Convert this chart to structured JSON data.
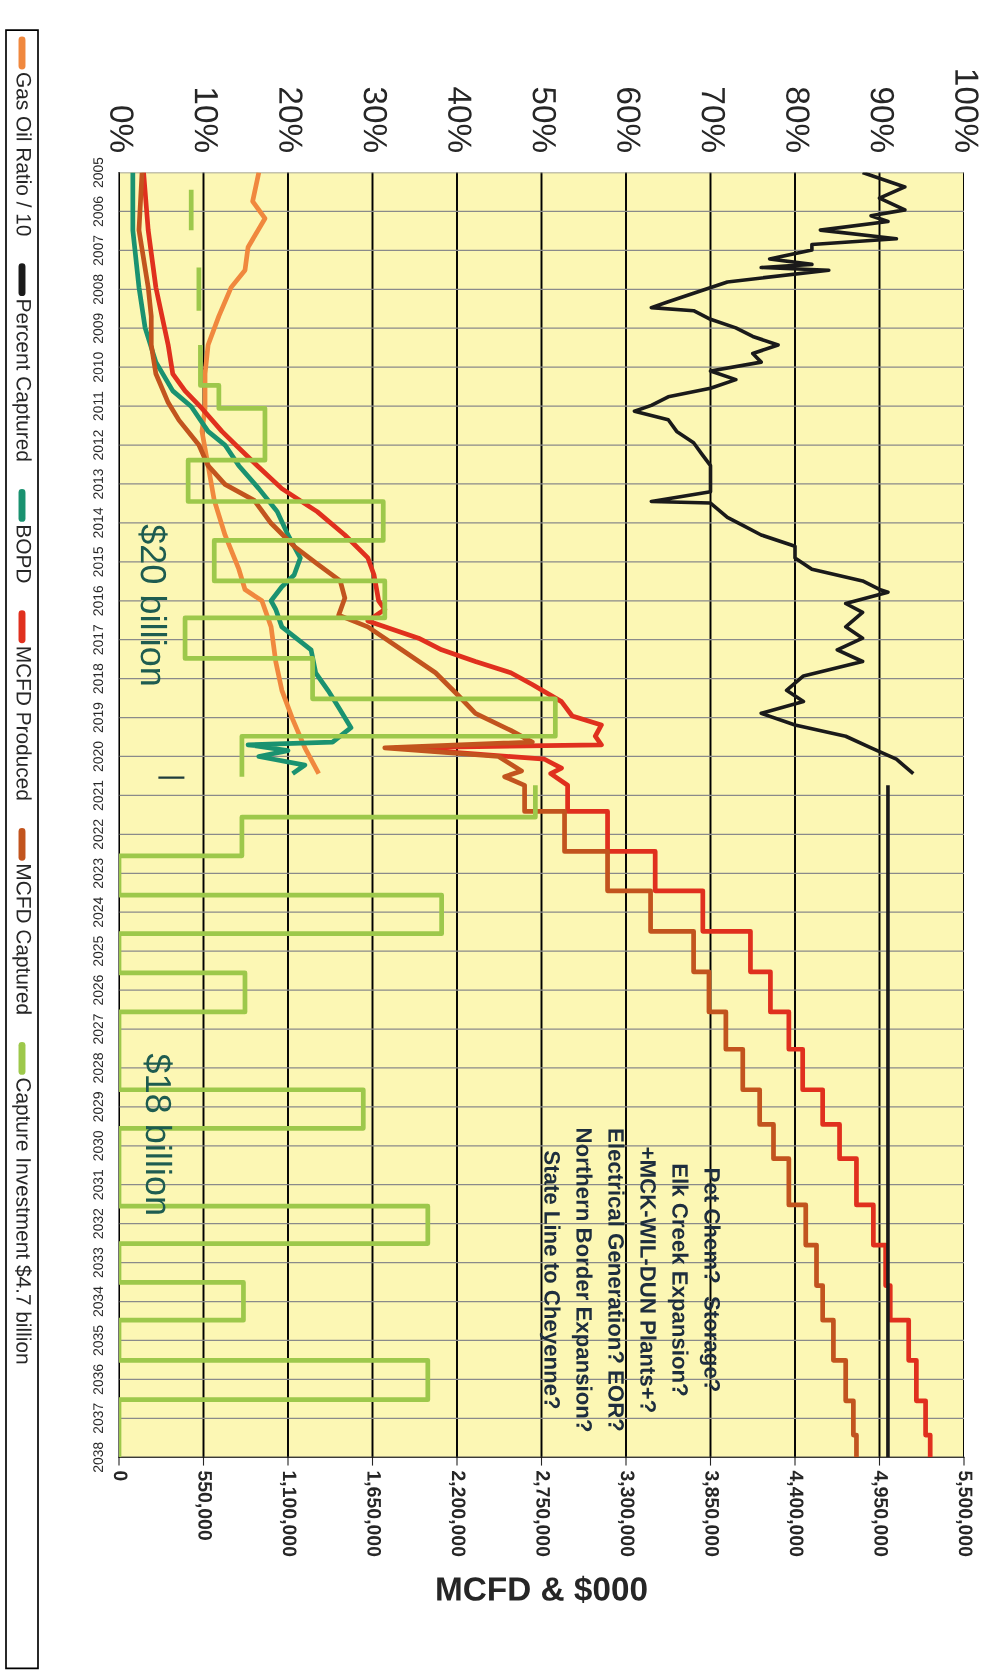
{
  "chart_data": {
    "type": "line",
    "orientation": "horizontal",
    "xlabel": "MCFD & $000",
    "xlim": [
      0,
      5500000
    ],
    "xticks": [
      0,
      {
        "value": 550000,
        "label": "550,000"
      },
      {
        "value": 1100000,
        "label": "1,100,000"
      },
      {
        "value": 1650000,
        "label": "1,650,000"
      },
      {
        "value": 2200000,
        "label": "2,200,000"
      },
      {
        "value": 2750000,
        "label": "2,750,000"
      },
      {
        "value": 3300000,
        "label": "3,300,000"
      },
      {
        "value": 3850000,
        "label": "3,850,000"
      },
      {
        "value": 4400000,
        "label": "4,400,000"
      },
      {
        "value": 4950000,
        "label": "4,950,000"
      },
      {
        "value": 5500000,
        "label": "5,500,000"
      }
    ],
    "x2lim": [
      0,
      100
    ],
    "x2ticks": [
      {
        "value": 0,
        "label": "0%"
      },
      {
        "value": 10,
        "label": "10%"
      },
      {
        "value": 20,
        "label": "20%"
      },
      {
        "value": 30,
        "label": "30%"
      },
      {
        "value": 40,
        "label": "40%"
      },
      {
        "value": 50,
        "label": "50%"
      },
      {
        "value": 60,
        "label": "60%"
      },
      {
        "value": 70,
        "label": "70%"
      },
      {
        "value": 80,
        "label": "80%"
      },
      {
        "value": 90,
        "label": "90%"
      },
      {
        "value": 100,
        "label": "100%"
      }
    ],
    "ylim": [
      2038,
      2005
    ],
    "yticks": [
      2005,
      2006,
      2007,
      2008,
      2009,
      2010,
      2011,
      2012,
      2013,
      2014,
      2015,
      2016,
      2017,
      2018,
      2019,
      2020,
      2021,
      2022,
      2023,
      2024,
      2025,
      2026,
      2027,
      2028,
      2029,
      2030,
      2031,
      2032,
      2033,
      2034,
      2035,
      2036,
      2037,
      2038
    ],
    "grid": true,
    "legend": "left",
    "line_style": "solid",
    "marker": "none",
    "annotations": [
      "$20 billion",
      "|",
      "$18 billion",
      "Pet Chem?  Storage?\nElk Creek Expansion?\n+MCK-WIL-DUN Plants+?\nElectrical Generation? EOR?\nNorthern Border Expansion?\nState Line to Cheyenne?"
    ],
    "series": [
      {
        "name": "Gas Oil Ratio / 10",
        "color": "#f0883e",
        "x": [
          2005.0,
          2005.74,
          2006.18,
          2006.92,
          2007.51,
          2007.95,
          2008.69,
          2009.43,
          2010.17,
          2011.06,
          2011.65,
          2012.53,
          2013.42,
          2014.31,
          2015.19,
          2015.71,
          2016.0,
          2016.67,
          2017.56,
          2018.3,
          2019.04,
          2019.78,
          2020.44
        ],
        "values": [
          910000,
          870000,
          950000,
          840000,
          820000,
          730000,
          650000,
          580000,
          560000,
          560000,
          540000,
          580000,
          620000,
          690000,
          780000,
          820000,
          930000,
          990000,
          1020000,
          1060000,
          1130000,
          1210000,
          1300000
        ]
      },
      {
        "name": "Percent Captured",
        "color": "#1a1a1a",
        "axis": "x2",
        "x": [
          2005.0,
          2005.37,
          2005.66,
          2005.96,
          2006.11,
          2006.26,
          2006.48,
          2006.7,
          2006.85,
          2006.99,
          2007.22,
          2007.36,
          2007.44,
          2007.51,
          2007.81,
          2008.1,
          2008.32,
          2008.47,
          2008.55,
          2008.77,
          2008.99,
          2009.21,
          2009.43,
          2009.65,
          2009.87,
          2010.1,
          2010.32,
          2010.54,
          2010.76,
          2010.98,
          2011.13,
          2011.35,
          2011.65,
          2011.94,
          2012.24,
          2012.53,
          2012.83,
          2013.2,
          2013.45,
          2013.49,
          2013.86,
          2014.08,
          2014.31,
          2014.6,
          2014.9,
          2015.19,
          2015.49,
          2015.71,
          2015.78,
          2016.07,
          2016.3,
          2016.67,
          2016.96,
          2017.26,
          2017.56,
          2017.93,
          2018.3,
          2018.59,
          2018.89,
          2019.19,
          2019.48,
          2019.78,
          2020.07,
          2020.44,
          2020.6,
          2020.74,
          2038
        ],
        "values": [
          88,
          93,
          90,
          93,
          89,
          91,
          83,
          92,
          82,
          82,
          77,
          82,
          76,
          84,
          72,
          68,
          65,
          63,
          68,
          70,
          73,
          75,
          78,
          75,
          76,
          70,
          73,
          70,
          65,
          63,
          61,
          65,
          66,
          68,
          69,
          70,
          70,
          70,
          63,
          70,
          72,
          74,
          76,
          80,
          80,
          82,
          88,
          90,
          91,
          86,
          88,
          86,
          88,
          85,
          88,
          81,
          79,
          81,
          76,
          80,
          86,
          89,
          92,
          94,
          null,
          91,
          91
        ]
      },
      {
        "name": "BOPD",
        "color": "#1a9270",
        "x": [
          2005.0,
          2006.48,
          2007.95,
          2008.99,
          2009.87,
          2010.61,
          2011.01,
          2011.65,
          2012.0,
          2012.53,
          2013.12,
          2013.71,
          2014.31,
          2014.9,
          2015.34,
          2015.64,
          2016.0,
          2016.22,
          2016.67,
          2017.26,
          2017.85,
          2018.3,
          2018.74,
          2019.26,
          2019.63,
          2019.7,
          2019.85,
          2020.0,
          2020.22,
          2020.44
        ],
        "values": [
          90000,
          90000,
          130000,
          170000,
          240000,
          350000,
          470000,
          580000,
          690000,
          780000,
          910000,
          1030000,
          1100000,
          1180000,
          1140000,
          1060000,
          990000,
          1020000,
          1060000,
          1250000,
          1280000,
          1360000,
          1430000,
          1510000,
          1390000,
          840000,
          1100000,
          910000,
          1210000,
          1130000
        ]
      },
      {
        "name": "MCFD Produced",
        "color": "#e0301e",
        "x": [
          2005.0,
          2006.48,
          2007.95,
          2008.69,
          2009.43,
          2010.17,
          2010.61,
          2011.06,
          2011.65,
          2012.0,
          2012.53,
          2013.12,
          2013.71,
          2014.31,
          2014.9,
          2015.34,
          2016.0,
          2016.22,
          2016.52,
          2016.67,
          2016.96,
          2017.26,
          2017.56,
          2017.85,
          2018.15,
          2018.59,
          2018.96,
          2019.19,
          2019.48,
          2019.7,
          2019.78,
          2020.07,
          2020.3,
          2020.44,
          2020.74,
          2021.41,
          2021.41,
          2022.44,
          2022.44,
          2023.45,
          2023.45,
          2024.49,
          2024.49,
          2025.53,
          2025.53,
          2026.56,
          2026.56,
          2027.52,
          2027.52,
          2028.56,
          2028.56,
          2029.45,
          2029.45,
          2030.33,
          2030.33,
          2031.52,
          2031.52,
          2032.55,
          2032.55,
          2033.59,
          2033.59,
          2034.48,
          2034.48,
          2035.51,
          2035.51,
          2036.55,
          2036.55,
          2037.43,
          2037.43,
          2038
        ],
        "values": [
          160000,
          190000,
          240000,
          280000,
          320000,
          350000,
          430000,
          540000,
          670000,
          760000,
          900000,
          1060000,
          1290000,
          1470000,
          1620000,
          1660000,
          1690000,
          1730000,
          1620000,
          1730000,
          1950000,
          2100000,
          2320000,
          2550000,
          2690000,
          2880000,
          2950000,
          3140000,
          3100000,
          3140000,
          1800000,
          2770000,
          2880000,
          2810000,
          2920000,
          2920000,
          3180000,
          3180000,
          3490000,
          3490000,
          3800000,
          3800000,
          4110000,
          4110000,
          4240000,
          4240000,
          4360000,
          4360000,
          4450000,
          4450000,
          4580000,
          4580000,
          4690000,
          4690000,
          4800000,
          4800000,
          4910000,
          4910000,
          4990000,
          4990000,
          5020000,
          5020000,
          5140000,
          5140000,
          5190000,
          5190000,
          5250000,
          5250000,
          5280000,
          5280000
        ]
      },
      {
        "name": "MCFD Captured",
        "color": "#c2541e",
        "x": [
          2005.0,
          2006.48,
          2007.95,
          2008.69,
          2009.43,
          2010.17,
          2010.91,
          2011.36,
          2012.0,
          2012.53,
          2013.01,
          2013.42,
          2014.01,
          2014.6,
          2015.05,
          2015.49,
          2015.93,
          2016.37,
          2016.67,
          2017.26,
          2017.85,
          2018.44,
          2018.89,
          2019.33,
          2019.63,
          2019.78,
          2020.0,
          2020.37,
          2020.52,
          2020.74,
          2021.41,
          2021.41,
          2022.44,
          2022.44,
          2023.45,
          2023.45,
          2024.49,
          2024.49,
          2025.53,
          2025.53,
          2026.56,
          2026.56,
          2027.52,
          2027.52,
          2028.56,
          2028.56,
          2029.45,
          2029.45,
          2030.33,
          2030.33,
          2031.52,
          2031.52,
          2032.55,
          2032.55,
          2033.59,
          2033.59,
          2034.48,
          2034.48,
          2035.51,
          2035.51,
          2036.55,
          2036.55,
          2037.43,
          2037.43,
          2038
        ],
        "values": [
          150000,
          130000,
          190000,
          210000,
          210000,
          240000,
          320000,
          390000,
          520000,
          580000,
          690000,
          880000,
          990000,
          1140000,
          1290000,
          1440000,
          1470000,
          1430000,
          1620000,
          1840000,
          2060000,
          2210000,
          2320000,
          2550000,
          2690000,
          1730000,
          2470000,
          2620000,
          2510000,
          2640000,
          2640000,
          2900000,
          2900000,
          3180000,
          3180000,
          3460000,
          3460000,
          3740000,
          3740000,
          3840000,
          3840000,
          3950000,
          3950000,
          4060000,
          4060000,
          4170000,
          4170000,
          4260000,
          4260000,
          4360000,
          4360000,
          4470000,
          4470000,
          4540000,
          4540000,
          4580000,
          4580000,
          4650000,
          4650000,
          4730000,
          4730000,
          4780000,
          4780000,
          4800000,
          4800000
        ]
      },
      {
        "name": "Capture Investment $4.7 billion",
        "color": "#9dc84b",
        "x": [
          2005.44,
          2006.48,
          2007.0,
          2007.44,
          2008.55,
          2009.0,
          2009.43,
          2010.47,
          2010.47,
          2011.06,
          2011.06,
          2012.39,
          2012.39,
          2013.45,
          2013.45,
          2014.45,
          2014.45,
          2015.49,
          2015.49,
          2016.44,
          2016.44,
          2017.48,
          2017.48,
          2018.52,
          2018.52,
          2019.48,
          2019.48,
          2020.52,
          2020.6,
          2020.74,
          2021.56,
          2021.56,
          2022.55,
          2022.55,
          2023.56,
          2023.56,
          2024.55,
          2024.55,
          2025.56,
          2025.56,
          2026.56,
          2026.56,
          2028.56,
          2028.56,
          2029.55,
          2029.55,
          2031.55,
          2031.55,
          2032.51,
          2032.51,
          2033.51,
          2033.51,
          2034.48,
          2034.48,
          2035.51,
          2035.51,
          2036.52,
          2036.52,
          2038
        ],
        "values": [
          470000,
          470000,
          null,
          520000,
          520000,
          null,
          530000,
          530000,
          650000,
          650000,
          950000,
          950000,
          450000,
          450000,
          1720000,
          1720000,
          620000,
          620000,
          1730000,
          1730000,
          430000,
          430000,
          1260000,
          1260000,
          2840000,
          2840000,
          800000,
          800000,
          null,
          2710000,
          2710000,
          800000,
          800000,
          0,
          0,
          2100000,
          2100000,
          0,
          0,
          820000,
          820000,
          0,
          0,
          1590000,
          1590000,
          0,
          0,
          2010000,
          2010000,
          0,
          0,
          810000,
          810000,
          0,
          0,
          2010000,
          2010000,
          0,
          0
        ]
      }
    ]
  }
}
